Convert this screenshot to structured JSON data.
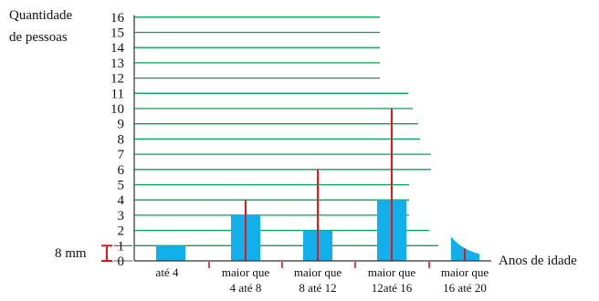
{
  "chart_data": {
    "type": "bar",
    "ylabel_line1": "Quantidade",
    "ylabel_line2": "de pessoas",
    "xlabel": "Anos de idade",
    "ylim": [
      0,
      16
    ],
    "yticks": [
      0,
      1,
      2,
      3,
      4,
      5,
      6,
      7,
      8,
      9,
      10,
      11,
      12,
      13,
      14,
      15,
      16
    ],
    "categories": [
      {
        "line1": "até 4",
        "line2": ""
      },
      {
        "line1": "maior que",
        "line2": "4 até 8"
      },
      {
        "line1": "maior que",
        "line2": "8 até 12"
      },
      {
        "line1": "maior que",
        "line2": "12até 16"
      },
      {
        "line1": "maior que",
        "line2": "16 até 20"
      }
    ],
    "values": [
      1,
      3,
      2,
      4,
      0.5
    ],
    "red_markers": [
      null,
      4,
      6,
      10,
      0.8
    ],
    "scale_note": "8 mm",
    "bar_color": "#12b0ea",
    "grid_color": "#00a651",
    "marker_color": "#e8141b"
  }
}
